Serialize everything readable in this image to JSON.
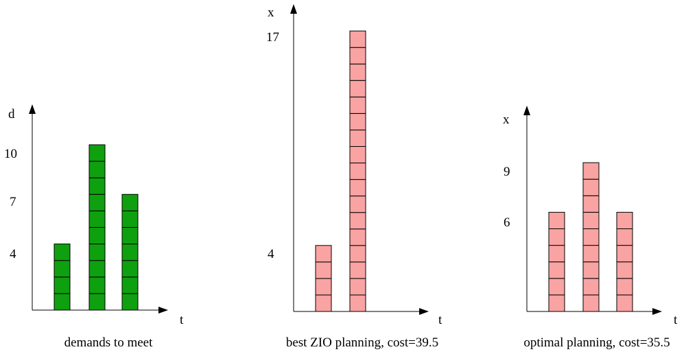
{
  "chart_data": [
    {
      "type": "bar",
      "ylabel": "d",
      "xlabel": "t",
      "caption": "demands to meet",
      "values": [
        4,
        10,
        7
      ],
      "yticks": [
        {
          "value": 4,
          "label": "4"
        },
        {
          "value": 7,
          "label": "7"
        },
        {
          "value": 10,
          "label": "10"
        }
      ],
      "bar_color": "#0fa00f",
      "style": "stacked unit squares"
    },
    {
      "type": "bar",
      "ylabel": "x",
      "xlabel": "t",
      "caption": "best ZIO planning, cost=39.5",
      "values": [
        4,
        17,
        0
      ],
      "yticks": [
        {
          "value": 4,
          "label": "4"
        },
        {
          "value": 17,
          "label": "17"
        }
      ],
      "bar_color": "#f9a3a3",
      "style": "stacked unit squares"
    },
    {
      "type": "bar",
      "ylabel": "x",
      "xlabel": "t",
      "caption": "optimal planning, cost=35.5",
      "values": [
        6,
        9,
        6
      ],
      "yticks": [
        {
          "value": 6,
          "label": "6"
        },
        {
          "value": 9,
          "label": "9"
        }
      ],
      "bar_color": "#f9a3a3",
      "style": "stacked unit squares"
    }
  ]
}
